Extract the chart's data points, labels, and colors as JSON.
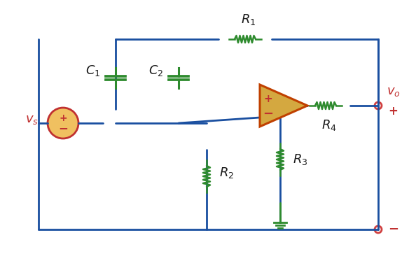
{
  "bg_color": "#ffffff",
  "wire_color": "#1a4fa0",
  "resistor_color": "#2e8b2e",
  "cap_color": "#2e8b2e",
  "opamp_fill": "#d4a840",
  "opamp_edge": "#c04000",
  "source_fill": "#f0c060",
  "source_edge": "#c03030",
  "label_color_dark": "#1a1a1a",
  "label_color_red": "#c03030",
  "label_color_green": "#2e6b2e",
  "terminal_color": "#d04040",
  "ground_color": "#2e8b2e",
  "title": "",
  "figsize": [
    5.94,
    3.86
  ],
  "dpi": 100
}
